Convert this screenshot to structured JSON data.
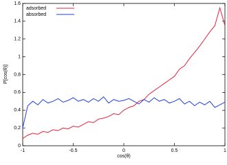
{
  "chart_data": {
    "type": "line",
    "xlabel": "cos(θ)",
    "ylabel": "P[cos(θ)]",
    "x": [
      -1,
      -0.95,
      -0.9,
      -0.85,
      -0.8,
      -0.75,
      -0.7,
      -0.65,
      -0.6,
      -0.55,
      -0.5,
      -0.45,
      -0.4,
      -0.35,
      -0.3,
      -0.25,
      -0.2,
      -0.15,
      -0.1,
      -0.05,
      0,
      0.05,
      0.1,
      0.15,
      0.2,
      0.25,
      0.3,
      0.35,
      0.4,
      0.45,
      0.5,
      0.55,
      0.6,
      0.65,
      0.7,
      0.75,
      0.8,
      0.85,
      0.9,
      0.95,
      1
    ],
    "series": [
      {
        "name": "adsorbed",
        "color": "#e8203a",
        "values": [
          0.08,
          0.12,
          0.14,
          0.13,
          0.16,
          0.15,
          0.18,
          0.17,
          0.2,
          0.19,
          0.22,
          0.21,
          0.24,
          0.27,
          0.26,
          0.3,
          0.31,
          0.33,
          0.36,
          0.35,
          0.4,
          0.43,
          0.45,
          0.5,
          0.52,
          0.58,
          0.62,
          0.66,
          0.7,
          0.74,
          0.78,
          0.86,
          0.9,
          0.98,
          1.05,
          1.12,
          1.2,
          1.28,
          1.35,
          1.55,
          1.35
        ]
      },
      {
        "name": "absorbed",
        "color": "#2040e0",
        "values": [
          0.2,
          0.45,
          0.5,
          0.46,
          0.52,
          0.48,
          0.5,
          0.53,
          0.49,
          0.51,
          0.54,
          0.5,
          0.52,
          0.49,
          0.53,
          0.5,
          0.55,
          0.48,
          0.52,
          0.5,
          0.51,
          0.53,
          0.5,
          0.47,
          0.52,
          0.49,
          0.54,
          0.5,
          0.52,
          0.48,
          0.5,
          0.53,
          0.47,
          0.5,
          0.45,
          0.49,
          0.46,
          0.5,
          0.43,
          0.46,
          0.49
        ]
      }
    ],
    "xlim": [
      -1,
      1
    ],
    "xticks": [
      -1,
      -0.5,
      0,
      0.5,
      1
    ],
    "ylim": [
      0,
      1.6
    ],
    "yticks": [
      0,
      0.2,
      0.4,
      0.6,
      0.8,
      1,
      1.2,
      1.4,
      1.6
    ],
    "legend": "upper-left"
  }
}
